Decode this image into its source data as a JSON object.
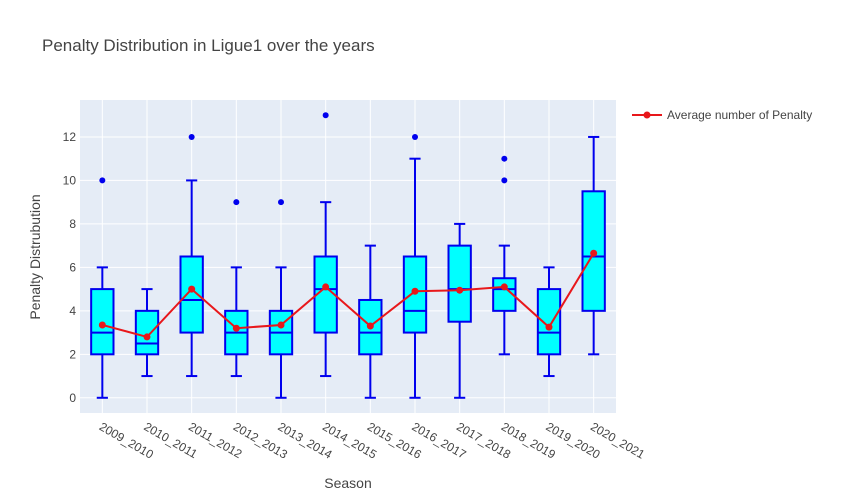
{
  "chart_data": {
    "type": "box",
    "title": "Penalty Distribution in Ligue1 over the years",
    "xlabel": "Season",
    "ylabel": "Penalty Distrubution",
    "ylim": [
      -0.7,
      13.7
    ],
    "yticks": [
      0,
      2,
      4,
      6,
      8,
      10,
      12
    ],
    "grid": true,
    "legend_position": "top-right",
    "categories": [
      "2009_2010",
      "2010_2011",
      "2011_2012",
      "2012_2013",
      "2013_2014",
      "2014_2015",
      "2015_2016",
      "2016_2017",
      "2017_2018",
      "2018_2019",
      "2019_2020",
      "2020_2021"
    ],
    "boxes": [
      {
        "min": 0,
        "q1": 2,
        "median": 3,
        "q3": 5,
        "max": 6,
        "outliers": [
          10
        ]
      },
      {
        "min": 1,
        "q1": 2,
        "median": 2.5,
        "q3": 4,
        "max": 5,
        "outliers": []
      },
      {
        "min": 1,
        "q1": 3,
        "median": 4.5,
        "q3": 6.5,
        "max": 10,
        "outliers": [
          12
        ]
      },
      {
        "min": 1,
        "q1": 2,
        "median": 3,
        "q3": 4,
        "max": 6,
        "outliers": [
          9
        ]
      },
      {
        "min": 0,
        "q1": 2,
        "median": 3,
        "q3": 4,
        "max": 6,
        "outliers": [
          9
        ]
      },
      {
        "min": 1,
        "q1": 3,
        "median": 5,
        "q3": 6.5,
        "max": 9,
        "outliers": [
          13
        ]
      },
      {
        "min": 0,
        "q1": 2,
        "median": 3,
        "q3": 4.5,
        "max": 7,
        "outliers": []
      },
      {
        "min": 0,
        "q1": 3,
        "median": 4,
        "q3": 6.5,
        "max": 11,
        "outliers": [
          12
        ]
      },
      {
        "min": 0,
        "q1": 3.5,
        "median": 5,
        "q3": 7,
        "max": 8,
        "outliers": []
      },
      {
        "min": 2,
        "q1": 4,
        "median": 5,
        "q3": 5.5,
        "max": 7,
        "outliers": [
          10,
          11
        ]
      },
      {
        "min": 1,
        "q1": 2,
        "median": 3,
        "q3": 5,
        "max": 6,
        "outliers": []
      },
      {
        "min": 2,
        "q1": 4,
        "median": 6.5,
        "q3": 9.5,
        "max": 12,
        "outliers": []
      }
    ],
    "series": [
      {
        "name": "Average number of Penalty",
        "type": "line",
        "color": "#e8171b",
        "values": [
          3.35,
          2.8,
          5.0,
          3.2,
          3.35,
          5.1,
          3.3,
          4.9,
          4.95,
          5.1,
          3.25,
          6.65
        ]
      }
    ],
    "colors": {
      "box_fill": "#00ffff",
      "box_line": "#0000ee",
      "outlier": "#0000ee",
      "plot_bg": "#e5ecf6"
    }
  }
}
